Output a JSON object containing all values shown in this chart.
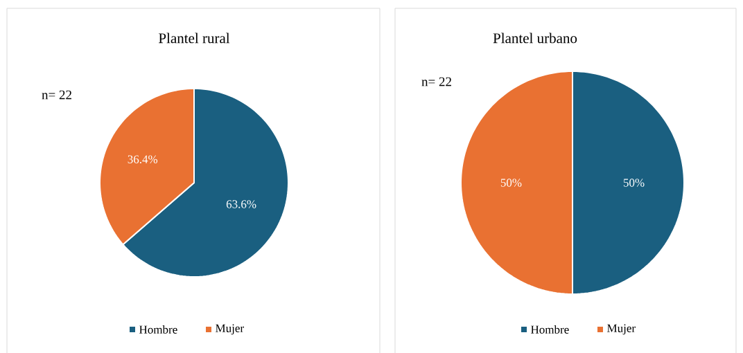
{
  "chart_data": [
    {
      "type": "pie",
      "title": "Plantel rural",
      "categories": [
        "Hombre",
        "Mujer"
      ],
      "values": [
        63.6,
        36.4
      ],
      "colors": [
        "#1a5f80",
        "#e97132"
      ],
      "value_labels": [
        "63.6%",
        "36.4%"
      ],
      "legend": "bottom",
      "annotations": [
        "n= 22"
      ]
    },
    {
      "type": "pie",
      "title": "Plantel urbano",
      "categories": [
        "Hombre",
        "Mujer"
      ],
      "values": [
        50,
        50
      ],
      "colors": [
        "#1a5f80",
        "#e97132"
      ],
      "value_labels": [
        "50%",
        "50%"
      ],
      "legend": "bottom",
      "annotations": [
        "n= 22"
      ]
    }
  ]
}
